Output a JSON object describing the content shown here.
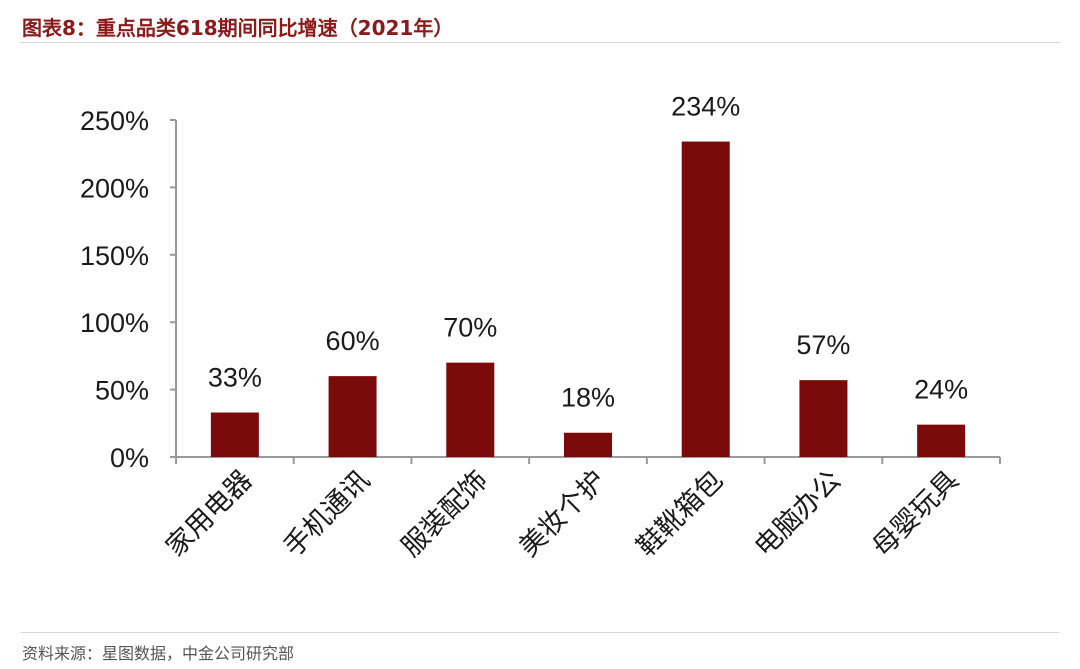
{
  "title": "图表8：重点品类618期间同比增速（2021年）",
  "source": "资料来源：星图数据，中金公司研究部",
  "chart_data": {
    "type": "bar",
    "categories": [
      "家用电器",
      "手机通讯",
      "服装配饰",
      "美妆个护",
      "鞋靴箱包",
      "电脑办公",
      "母婴玩具"
    ],
    "values": [
      33,
      60,
      70,
      18,
      234,
      57,
      24
    ],
    "data_labels": [
      "33%",
      "60%",
      "70%",
      "18%",
      "234%",
      "57%",
      "24%"
    ],
    "ylim": [
      0,
      250
    ],
    "yticks": [
      0,
      50,
      100,
      150,
      200,
      250
    ],
    "ytick_labels": [
      "0%",
      "50%",
      "100%",
      "150%",
      "200%",
      "250%"
    ],
    "bar_color": "#7b0a0a",
    "grid": false,
    "legend": "none"
  }
}
